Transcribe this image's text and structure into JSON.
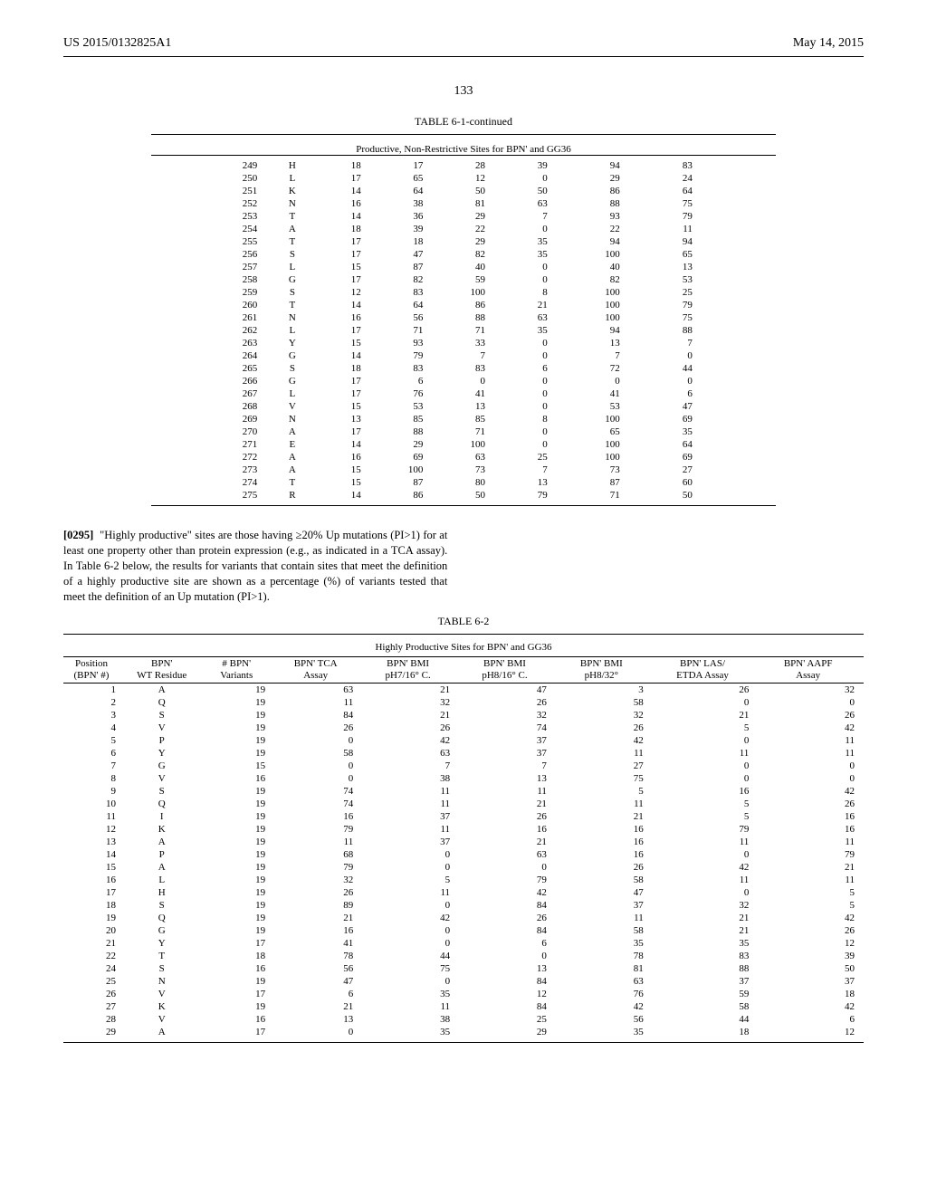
{
  "header": {
    "left": "US 2015/0132825A1",
    "right": "May 14, 2015",
    "page_number": "133"
  },
  "table1": {
    "caption": "TABLE 6-1-continued",
    "subtitle": "Productive, Non-Restrictive Sites for BPN' and GG36",
    "rows": [
      [
        "249",
        "H",
        "18",
        "17",
        "28",
        "39",
        "94",
        "83"
      ],
      [
        "250",
        "L",
        "17",
        "65",
        "12",
        "0",
        "29",
        "24"
      ],
      [
        "251",
        "K",
        "14",
        "64",
        "50",
        "50",
        "86",
        "64"
      ],
      [
        "252",
        "N",
        "16",
        "38",
        "81",
        "63",
        "88",
        "75"
      ],
      [
        "253",
        "T",
        "14",
        "36",
        "29",
        "7",
        "93",
        "79"
      ],
      [
        "254",
        "A",
        "18",
        "39",
        "22",
        "0",
        "22",
        "11"
      ],
      [
        "255",
        "T",
        "17",
        "18",
        "29",
        "35",
        "94",
        "94"
      ],
      [
        "256",
        "S",
        "17",
        "47",
        "82",
        "35",
        "100",
        "65"
      ],
      [
        "257",
        "L",
        "15",
        "87",
        "40",
        "0",
        "40",
        "13"
      ],
      [
        "258",
        "G",
        "17",
        "82",
        "59",
        "0",
        "82",
        "53"
      ],
      [
        "259",
        "S",
        "12",
        "83",
        "100",
        "8",
        "100",
        "25"
      ],
      [
        "260",
        "T",
        "14",
        "64",
        "86",
        "21",
        "100",
        "79"
      ],
      [
        "261",
        "N",
        "16",
        "56",
        "88",
        "63",
        "100",
        "75"
      ],
      [
        "262",
        "L",
        "17",
        "71",
        "71",
        "35",
        "94",
        "88"
      ],
      [
        "263",
        "Y",
        "15",
        "93",
        "33",
        "0",
        "13",
        "7"
      ],
      [
        "264",
        "G",
        "14",
        "79",
        "7",
        "0",
        "7",
        "0"
      ],
      [
        "265",
        "S",
        "18",
        "83",
        "83",
        "6",
        "72",
        "44"
      ],
      [
        "266",
        "G",
        "17",
        "6",
        "0",
        "0",
        "0",
        "0"
      ],
      [
        "267",
        "L",
        "17",
        "76",
        "41",
        "0",
        "41",
        "6"
      ],
      [
        "268",
        "V",
        "15",
        "53",
        "13",
        "0",
        "53",
        "47"
      ],
      [
        "269",
        "N",
        "13",
        "85",
        "85",
        "8",
        "100",
        "69"
      ],
      [
        "270",
        "A",
        "17",
        "88",
        "71",
        "0",
        "65",
        "35"
      ],
      [
        "271",
        "E",
        "14",
        "29",
        "100",
        "0",
        "100",
        "64"
      ],
      [
        "272",
        "A",
        "16",
        "69",
        "63",
        "25",
        "100",
        "69"
      ],
      [
        "273",
        "A",
        "15",
        "100",
        "73",
        "7",
        "73",
        "27"
      ],
      [
        "274",
        "T",
        "15",
        "87",
        "80",
        "13",
        "87",
        "60"
      ],
      [
        "275",
        "R",
        "14",
        "86",
        "50",
        "79",
        "71",
        "50"
      ]
    ]
  },
  "paragraph": {
    "num": "[0295]",
    "text": "  \"Highly productive\" sites are those having ≥20% Up mutations (PI>1) for at least one property other than protein expression (e.g., as indicated in a TCA assay). In Table 6-2 below, the results for variants that contain sites that meet the definition of a highly productive site are shown as a percentage (%) of variants tested that meet the definition of an Up mutation (PI>1)."
  },
  "table2": {
    "caption": "TABLE 6-2",
    "subtitle": "Highly Productive Sites for BPN' and GG36",
    "columns": [
      "Position\n(BPN' #)",
      "BPN'\nWT Residue",
      "# BPN'\nVariants",
      "BPN' TCA\nAssay",
      "BPN' BMI\npH7/16° C.",
      "BPN' BMI\npH8/16° C.",
      "BPN' BMI\npH8/32°",
      "BPN' LAS/\nETDA Assay",
      "BPN' AAPF\nAssay"
    ],
    "rows": [
      [
        "1",
        "A",
        "19",
        "63",
        "21",
        "47",
        "3",
        "26",
        "32"
      ],
      [
        "2",
        "Q",
        "19",
        "11",
        "32",
        "26",
        "58",
        "0",
        "0"
      ],
      [
        "3",
        "S",
        "19",
        "84",
        "21",
        "32",
        "32",
        "21",
        "26"
      ],
      [
        "4",
        "V",
        "19",
        "26",
        "26",
        "74",
        "26",
        "5",
        "42"
      ],
      [
        "5",
        "P",
        "19",
        "0",
        "42",
        "37",
        "42",
        "0",
        "11"
      ],
      [
        "6",
        "Y",
        "19",
        "58",
        "63",
        "37",
        "11",
        "11",
        "11"
      ],
      [
        "7",
        "G",
        "15",
        "0",
        "7",
        "7",
        "27",
        "0",
        "0"
      ],
      [
        "8",
        "V",
        "16",
        "0",
        "38",
        "13",
        "75",
        "0",
        "0"
      ],
      [
        "9",
        "S",
        "19",
        "74",
        "11",
        "11",
        "5",
        "16",
        "42"
      ],
      [
        "10",
        "Q",
        "19",
        "74",
        "11",
        "21",
        "11",
        "5",
        "26"
      ],
      [
        "11",
        "I",
        "19",
        "16",
        "37",
        "26",
        "21",
        "5",
        "16"
      ],
      [
        "12",
        "K",
        "19",
        "79",
        "11",
        "16",
        "16",
        "79",
        "16"
      ],
      [
        "13",
        "A",
        "19",
        "11",
        "37",
        "21",
        "16",
        "11",
        "11"
      ],
      [
        "14",
        "P",
        "19",
        "68",
        "0",
        "63",
        "16",
        "0",
        "79"
      ],
      [
        "15",
        "A",
        "19",
        "79",
        "0",
        "0",
        "26",
        "42",
        "21"
      ],
      [
        "16",
        "L",
        "19",
        "32",
        "5",
        "79",
        "58",
        "11",
        "11"
      ],
      [
        "17",
        "H",
        "19",
        "26",
        "11",
        "42",
        "47",
        "0",
        "5"
      ],
      [
        "18",
        "S",
        "19",
        "89",
        "0",
        "84",
        "37",
        "32",
        "5"
      ],
      [
        "19",
        "Q",
        "19",
        "21",
        "42",
        "26",
        "11",
        "21",
        "42"
      ],
      [
        "20",
        "G",
        "19",
        "16",
        "0",
        "84",
        "58",
        "21",
        "26"
      ],
      [
        "21",
        "Y",
        "17",
        "41",
        "0",
        "6",
        "35",
        "35",
        "12"
      ],
      [
        "22",
        "T",
        "18",
        "78",
        "44",
        "0",
        "78",
        "83",
        "39"
      ],
      [
        "24",
        "S",
        "16",
        "56",
        "75",
        "13",
        "81",
        "88",
        "50"
      ],
      [
        "25",
        "N",
        "19",
        "47",
        "0",
        "84",
        "63",
        "37",
        "37"
      ],
      [
        "26",
        "V",
        "17",
        "6",
        "35",
        "12",
        "76",
        "59",
        "18"
      ],
      [
        "27",
        "K",
        "19",
        "21",
        "11",
        "84",
        "42",
        "58",
        "42"
      ],
      [
        "28",
        "V",
        "16",
        "13",
        "38",
        "25",
        "56",
        "44",
        "6"
      ],
      [
        "29",
        "A",
        "17",
        "0",
        "35",
        "29",
        "35",
        "18",
        "12"
      ]
    ]
  }
}
